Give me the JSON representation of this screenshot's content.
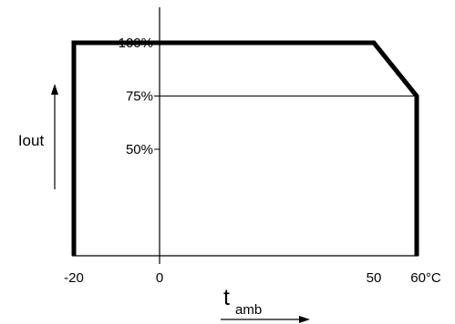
{
  "chart_data": {
    "type": "line",
    "title": "",
    "xlabel": "t",
    "xlabel_subscript": "amb",
    "ylabel": "Iout",
    "x_unit": "°C",
    "x_ticks": [
      {
        "value": -20,
        "label": "-20"
      },
      {
        "value": 0,
        "label": "0"
      },
      {
        "value": 50,
        "label": "50"
      },
      {
        "value": 60,
        "label": "60°C"
      }
    ],
    "y_ticks": [
      {
        "value": 50,
        "label": "50%"
      },
      {
        "value": 75,
        "label": "75%"
      },
      {
        "value": 100,
        "label": "100%"
      }
    ],
    "xlim": [
      -20,
      60
    ],
    "ylim": [
      0,
      100
    ],
    "grid": false,
    "series": [
      {
        "x": [
          -20,
          -20,
          50,
          60,
          60
        ],
        "y": [
          0,
          100,
          100,
          75,
          0
        ]
      }
    ],
    "reference_lines": [
      {
        "y": 75,
        "x_from": 0,
        "x_to": 60
      }
    ],
    "colors": {
      "line": "#000000",
      "axis": "#000000",
      "background": "#ffffff"
    }
  }
}
